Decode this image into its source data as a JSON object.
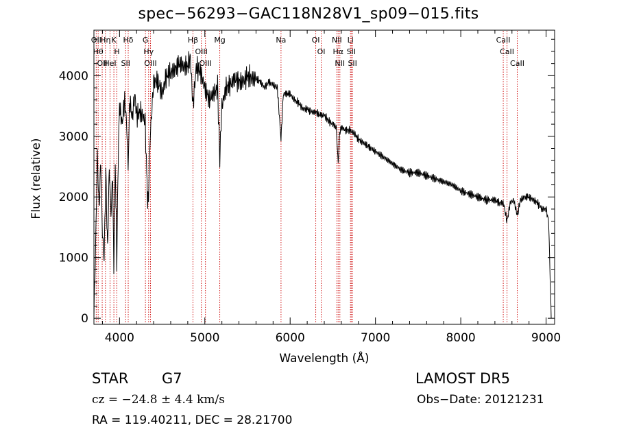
{
  "chart_data": {
    "type": "line",
    "title": "spec−56293−GAC118N28V1_sp09−015.fits",
    "xlabel": "Wavelength (Å)",
    "ylabel": "Flux (relative)",
    "xlim": [
      3700,
      9100
    ],
    "ylim": [
      -100,
      4750
    ],
    "xticks": [
      4000,
      5000,
      6000,
      7000,
      8000,
      9000
    ],
    "yticks": [
      0,
      1000,
      2000,
      3000,
      4000
    ],
    "grid": false,
    "series": [
      {
        "x": [
          3700,
          3720,
          3740,
          3760,
          3780,
          3800,
          3820,
          3840,
          3860,
          3880,
          3900,
          3920,
          3933,
          3950,
          3968,
          3985,
          4000,
          4030,
          4060,
          4080,
          4101,
          4120,
          4150,
          4180,
          4200,
          4250,
          4300,
          4330,
          4340,
          4360,
          4400,
          4450,
          4500,
          4550,
          4600,
          4650,
          4700,
          4750,
          4800,
          4830,
          4861,
          4900,
          4950,
          5000,
          5050,
          5100,
          5150,
          5175,
          5200,
          5250,
          5300,
          5350,
          5400,
          5450,
          5500,
          5550,
          5600,
          5650,
          5700,
          5750,
          5800,
          5850,
          5893,
          5920,
          5950,
          6000,
          6050,
          6100,
          6150,
          6200,
          6250,
          6300,
          6350,
          6400,
          6450,
          6500,
          6540,
          6563,
          6580,
          6600,
          6650,
          6700,
          6750,
          6800,
          6850,
          6900,
          6950,
          7000,
          7100,
          7200,
          7300,
          7400,
          7500,
          7600,
          7700,
          7800,
          7900,
          8000,
          8100,
          8200,
          8300,
          8400,
          8450,
          8500,
          8542,
          8580,
          8620,
          8662,
          8700,
          8750,
          8800,
          8850,
          8900,
          8950,
          9000,
          9030,
          9060
        ],
        "y": [
          50,
          1200,
          2700,
          1800,
          2600,
          1400,
          1000,
          2400,
          1100,
          2500,
          1700,
          2400,
          700,
          2600,
          900,
          2700,
          3500,
          3200,
          3600,
          3300,
          2500,
          3600,
          3300,
          3700,
          3350,
          3400,
          3250,
          1900,
          2000,
          3000,
          3900,
          3900,
          3700,
          4000,
          4050,
          4100,
          4200,
          4150,
          4150,
          4300,
          3500,
          4150,
          4050,
          3800,
          3600,
          3700,
          3800,
          2650,
          3500,
          3800,
          3850,
          3950,
          3900,
          3900,
          4000,
          3950,
          3950,
          3900,
          3800,
          3900,
          3850,
          3800,
          2950,
          3700,
          3700,
          3700,
          3600,
          3550,
          3450,
          3450,
          3400,
          3400,
          3350,
          3350,
          3250,
          3200,
          3150,
          2550,
          3050,
          3150,
          3100,
          3100,
          3050,
          2950,
          2900,
          2850,
          2800,
          2750,
          2650,
          2550,
          2450,
          2400,
          2400,
          2350,
          2300,
          2250,
          2200,
          2100,
          2050,
          2000,
          1950,
          1950,
          1900,
          1900,
          1600,
          1900,
          1950,
          1700,
          1950,
          2000,
          2000,
          1950,
          1900,
          1800,
          1800,
          1600,
          0
        ]
      }
    ],
    "lines": [
      {
        "x": 3727,
        "label": "OII"
      },
      {
        "x": 3750,
        "label": "Hθ"
      },
      {
        "x": 3797,
        "label": "OII"
      },
      {
        "x": 3835,
        "label": "Hη"
      },
      {
        "x": 3889,
        "label": "HeI"
      },
      {
        "x": 3934,
        "label": "K"
      },
      {
        "x": 3969,
        "label": "H"
      },
      {
        "x": 4072,
        "label": "SII"
      },
      {
        "x": 4102,
        "label": "Hδ"
      },
      {
        "x": 4304,
        "label": "G"
      },
      {
        "x": 4341,
        "label": "Hγ"
      },
      {
        "x": 4363,
        "label": "OIII"
      },
      {
        "x": 4861,
        "label": "Hβ"
      },
      {
        "x": 4959,
        "label": "OIII"
      },
      {
        "x": 5007,
        "label": "OIII"
      },
      {
        "x": 5175,
        "label": "Mg"
      },
      {
        "x": 5893,
        "label": "Na"
      },
      {
        "x": 6300,
        "label": "OI"
      },
      {
        "x": 6364,
        "label": "OI"
      },
      {
        "x": 6548,
        "label": "NII"
      },
      {
        "x": 6563,
        "label": "Hα"
      },
      {
        "x": 6583,
        "label": "NII"
      },
      {
        "x": 6707,
        "label": "Li"
      },
      {
        "x": 6716,
        "label": "SII"
      },
      {
        "x": 6731,
        "label": "SII"
      },
      {
        "x": 8498,
        "label": "CaII"
      },
      {
        "x": 8542,
        "label": "CaII"
      },
      {
        "x": 8662,
        "label": "CaII"
      }
    ],
    "line_color": "#d01010"
  },
  "footer": {
    "object_class": "STAR",
    "subclass": "G7",
    "survey": "LAMOST DR5",
    "redshift": "cz = −24.8 ± 4.4 km/s",
    "obs_date": "Obs−Date: 20121231",
    "coords": "RA = 119.40211, DEC =  28.21700"
  }
}
